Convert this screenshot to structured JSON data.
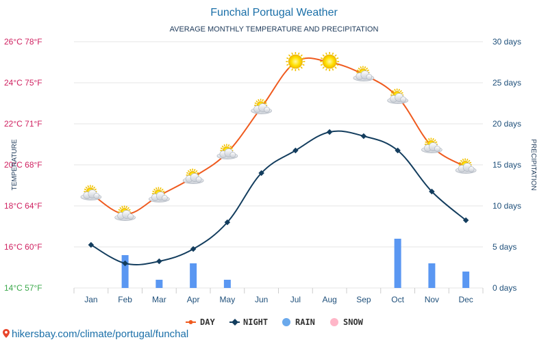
{
  "chart_data": {
    "type": "line",
    "title": "Funchal Portugal Weather",
    "subtitle": "AVERAGE MONTHLY TEMPERATURE AND PRECIPITATION",
    "ylabel_left": "TEMPERATURE",
    "ylabel_right": "PRECIPITATION",
    "categories": [
      "Jan",
      "Feb",
      "Mar",
      "Apr",
      "May",
      "Jun",
      "Jul",
      "Aug",
      "Sep",
      "Oct",
      "Nov",
      "Dec"
    ],
    "left_axis": {
      "unit": "°C",
      "ylim": [
        14,
        26
      ],
      "ticks": [
        {
          "value": 26,
          "label": "26°C 78°F"
        },
        {
          "value": 24,
          "label": "24°C 75°F"
        },
        {
          "value": 22,
          "label": "22°C 71°F"
        },
        {
          "value": 20,
          "label": "20°C 68°F"
        },
        {
          "value": 18,
          "label": "18°C 64°F"
        },
        {
          "value": 16,
          "label": "16°C 60°F"
        },
        {
          "value": 14,
          "label": "14°C 57°F"
        }
      ]
    },
    "right_axis": {
      "unit": "days",
      "ylim": [
        0,
        30
      ],
      "ticks": [
        {
          "value": 30,
          "label": "30 days"
        },
        {
          "value": 25,
          "label": "25 days"
        },
        {
          "value": 20,
          "label": "20 days"
        },
        {
          "value": 15,
          "label": "15 days"
        },
        {
          "value": 10,
          "label": "10 days"
        },
        {
          "value": 5,
          "label": "5 days"
        },
        {
          "value": 0,
          "label": "0 days"
        }
      ]
    },
    "series": [
      {
        "name": "DAY",
        "type": "line",
        "axis": "left",
        "color": "#ef5a1e",
        "values": [
          18.6,
          17.6,
          18.5,
          19.4,
          20.6,
          22.8,
          25.0,
          25.0,
          24.4,
          23.3,
          20.9,
          19.9
        ],
        "icons": [
          "partly-cloudy-icon",
          "partly-cloudy-icon",
          "partly-cloudy-icon",
          "partly-cloudy-icon",
          "partly-cloudy-icon",
          "partly-cloudy-icon",
          "sun-icon",
          "sun-icon",
          "partly-cloudy-icon",
          "partly-cloudy-icon",
          "partly-cloudy-icon",
          "partly-cloudy-icon"
        ]
      },
      {
        "name": "NIGHT",
        "type": "line",
        "axis": "left",
        "color": "#133d5e",
        "values": [
          16.1,
          15.2,
          15.3,
          15.9,
          17.2,
          19.6,
          20.7,
          21.6,
          21.4,
          20.7,
          18.7,
          17.3
        ]
      },
      {
        "name": "RAIN",
        "type": "bar",
        "axis": "right",
        "color": "#5a97f2",
        "values": [
          0,
          4,
          1,
          3,
          1,
          0,
          0,
          0,
          0,
          6,
          3,
          2
        ]
      },
      {
        "name": "SNOW",
        "type": "bar",
        "axis": "right",
        "color": "#ffb6c8",
        "values": [
          0,
          0,
          0,
          0,
          0,
          0,
          0,
          0,
          0,
          0,
          0,
          0
        ]
      }
    ],
    "legend": {
      "position": "bottom-center",
      "items": [
        {
          "label": "DAY",
          "color": "#ef5a1e",
          "marker": "line-dot"
        },
        {
          "label": "NIGHT",
          "color": "#133d5e",
          "marker": "line-diamond"
        },
        {
          "label": "RAIN",
          "color": "#6aa9ec",
          "marker": "circle"
        },
        {
          "label": "SNOW",
          "color": "#ffb6c8",
          "marker": "circle"
        }
      ]
    },
    "grid": true
  },
  "source": {
    "text": "hikersbay.com/climate/portugal/funchal",
    "icon": "location-pin-icon"
  }
}
